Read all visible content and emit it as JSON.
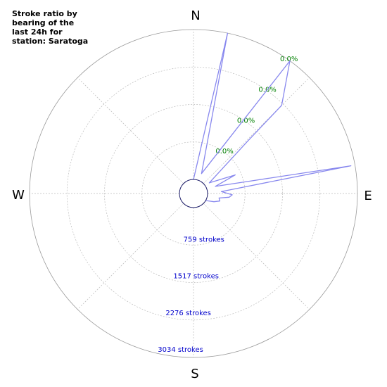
{
  "chart_data": {
    "type": "polar-line",
    "title": "Stroke ratio by bearing of the last 24h for station: Saratoga",
    "directions": [
      "N",
      "E",
      "S",
      "W"
    ],
    "ratio_ring_labels": [
      "0.0%",
      "0.0%",
      "0.0%",
      "0.0%"
    ],
    "stroke_ring_labels": [
      "759 strokes",
      "1517 strokes",
      "2276 strokes",
      "3034 strokes"
    ],
    "stroke_ring_values": [
      759,
      1517,
      2276,
      3034
    ],
    "radial_max": 3034,
    "bearing_unit": "degrees",
    "series": [
      {
        "color": "#8888ee",
        "points": [
          {
            "bearing": 0,
            "value": 0
          },
          {
            "bearing": 12,
            "value": 3034
          },
          {
            "bearing": 22,
            "value": 150
          },
          {
            "bearing": 36,
            "value": 3034
          },
          {
            "bearing": 45,
            "value": 2240
          },
          {
            "bearing": 46,
            "value": 1240
          },
          {
            "bearing": 56,
            "value": 100
          },
          {
            "bearing": 66,
            "value": 640
          },
          {
            "bearing": 72,
            "value": 180
          },
          {
            "bearing": 80,
            "value": 2950
          },
          {
            "bearing": 86,
            "value": 280
          },
          {
            "bearing": 92,
            "value": 500
          },
          {
            "bearing": 96,
            "value": 440
          },
          {
            "bearing": 100,
            "value": 240
          },
          {
            "bearing": 106,
            "value": 270
          },
          {
            "bearing": 112,
            "value": 160
          },
          {
            "bearing": 120,
            "value": 0
          },
          {
            "bearing": 360,
            "value": 0
          }
        ]
      }
    ]
  }
}
